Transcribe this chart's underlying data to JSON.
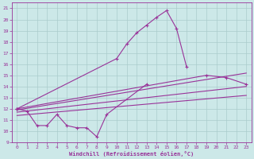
{
  "xlabel": "Windchill (Refroidissement éolien,°C)",
  "background_color": "#cce8e8",
  "grid_color": "#aacccc",
  "line_color": "#993399",
  "ylim": [
    9,
    21.5
  ],
  "xlim": [
    -0.5,
    23.5
  ],
  "yticks": [
    9,
    10,
    11,
    12,
    13,
    14,
    15,
    16,
    17,
    18,
    19,
    20,
    21
  ],
  "xticks": [
    0,
    1,
    2,
    3,
    4,
    5,
    6,
    7,
    8,
    9,
    10,
    11,
    12,
    13,
    14,
    15,
    16,
    17,
    18,
    19,
    20,
    21,
    22,
    23
  ],
  "series1_x": [
    0,
    1,
    2,
    3,
    4,
    5,
    6,
    7,
    8,
    9,
    13
  ],
  "series1_y": [
    12.0,
    11.8,
    10.5,
    10.5,
    11.5,
    10.5,
    10.3,
    10.3,
    9.5,
    11.5,
    14.2
  ],
  "series2_x": [
    0,
    10,
    11,
    12,
    13,
    14,
    15,
    16,
    17
  ],
  "series2_y": [
    12.0,
    16.5,
    17.8,
    18.8,
    19.5,
    20.2,
    20.8,
    19.2,
    15.8
  ],
  "series3_x": [
    0,
    19,
    21,
    23
  ],
  "series3_y": [
    12.0,
    15.0,
    14.8,
    14.2
  ],
  "trendline1_x": [
    0,
    23
  ],
  "trendline1_y": [
    11.9,
    15.2
  ],
  "trendline2_x": [
    0,
    23
  ],
  "trendline2_y": [
    11.7,
    14.0
  ],
  "trendline3_x": [
    0,
    23
  ],
  "trendline3_y": [
    11.4,
    13.2
  ]
}
